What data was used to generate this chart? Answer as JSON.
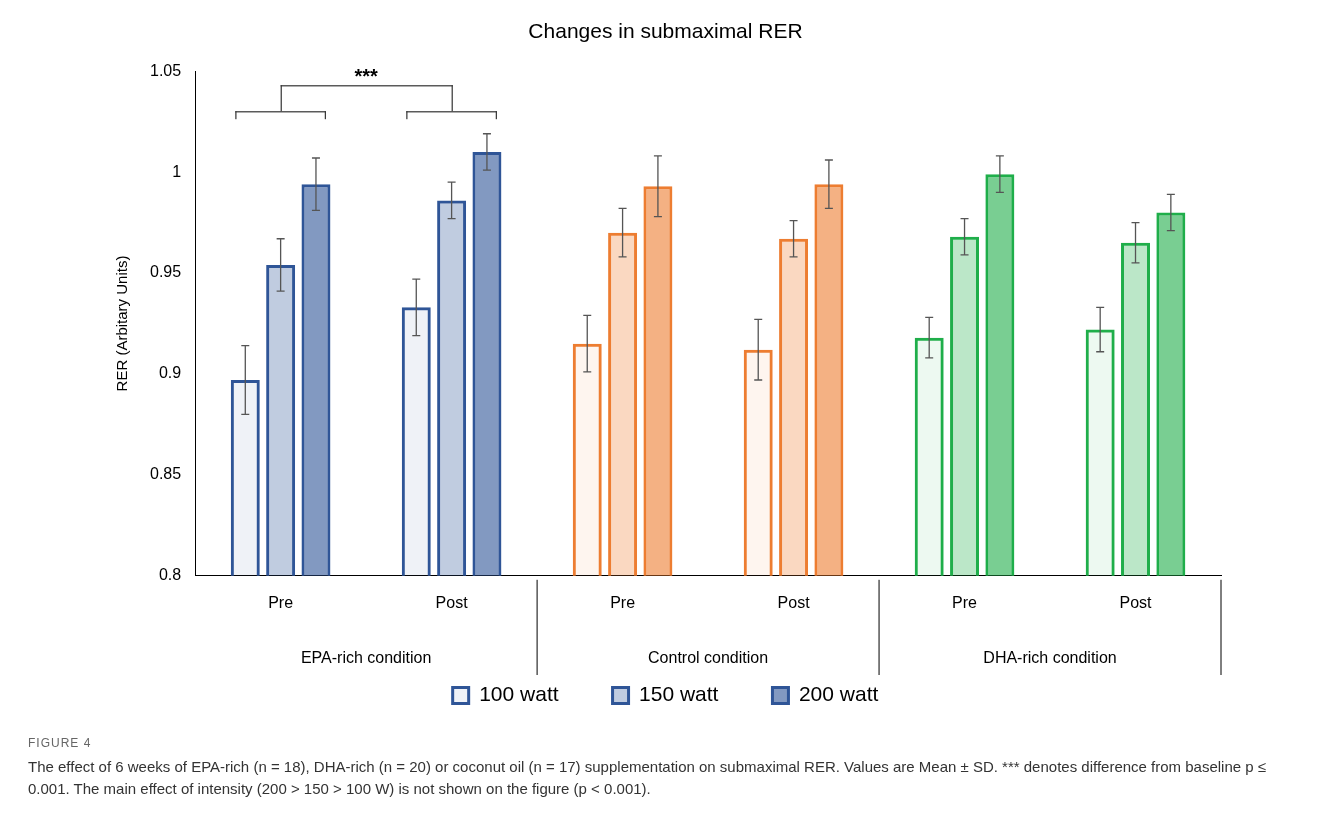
{
  "chart_data": {
    "type": "bar",
    "title": "Changes in submaximal RER",
    "ylabel": "RER (Arbitary Units)",
    "categories": [
      "Pre",
      "Post",
      "Pre",
      "Post",
      "Pre",
      "Post"
    ],
    "series": [
      {
        "name": "100 watt",
        "color": "#2f5597",
        "colors": [
          "#2f5597",
          "#2f5597",
          "#ed7d31",
          "#ed7d31",
          "#1fae4a",
          "#1fae4a"
        ],
        "values": [
          0.897,
          0.933,
          0.915,
          0.912,
          0.918,
          0.922
        ],
        "errors": [
          0.017,
          0.014,
          0.014,
          0.015,
          0.01,
          0.011
        ]
      },
      {
        "name": "150 watt",
        "color": "#2f5597",
        "colors": [
          "#2f5597",
          "#2f5597",
          "#ed7d31",
          "#ed7d31",
          "#1fae4a",
          "#1fae4a"
        ],
        "values": [
          0.954,
          0.986,
          0.97,
          0.967,
          0.968,
          0.965
        ],
        "errors": [
          0.013,
          0.009,
          0.012,
          0.009,
          0.009,
          0.01
        ]
      },
      {
        "name": "200 watt",
        "color": "#2f5597",
        "colors": [
          "#2f5597",
          "#2f5597",
          "#ed7d31",
          "#ed7d31",
          "#1fae4a",
          "#1fae4a"
        ],
        "values": [
          0.994,
          1.01,
          0.993,
          0.994,
          0.999,
          0.98
        ],
        "errors": [
          0.013,
          0.009,
          0.015,
          0.012,
          0.009,
          0.009
        ]
      }
    ],
    "ylim": [
      0.8,
      1.05
    ],
    "yticks": [
      0.8,
      0.85,
      0.9,
      0.95,
      1,
      1.05
    ],
    "grid": false,
    "legend": "bottom",
    "annotations": [
      "EPA-rich condition",
      "Control condition",
      "DHA-rich condition",
      "***",
      "FIGURE 4",
      "The effect of 6 weeks of EPA-rich (n = 18), DHA-rich (n = 20) or coconut oil (n = 17) supplementation on submaximal RER. Values are Mean ± SD. *** denotes difference from baseline p ≤ 0.001. The main effect of intensity (200 > 150 > 100 W) is not shown on the figure (p < 0.001)."
    ]
  }
}
